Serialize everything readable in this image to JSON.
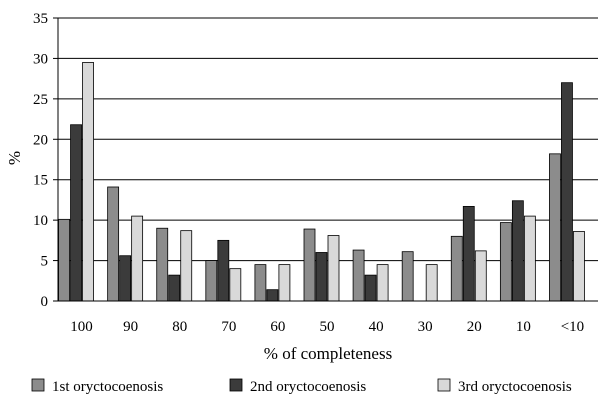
{
  "chart_data": {
    "type": "bar",
    "xlabel": "% of completeness",
    "ylabel": "%",
    "ylim": [
      0,
      35
    ],
    "yticks": [
      0,
      5,
      10,
      15,
      20,
      25,
      30,
      35
    ],
    "grid": true,
    "legend_position": "bottom",
    "categories": [
      "100",
      "90",
      "80",
      "70",
      "60",
      "50",
      "40",
      "30",
      "20",
      "10",
      "<10"
    ],
    "series": [
      {
        "name": "1st oryctocoenosis",
        "color": "#8c8c8c",
        "values": [
          10.1,
          14.1,
          9.0,
          5.0,
          4.5,
          8.9,
          6.3,
          6.1,
          8.0,
          9.7,
          18.2
        ]
      },
      {
        "name": "2nd oryctocoenosis",
        "color": "#3b3b3b",
        "values": [
          21.8,
          5.6,
          3.2,
          7.5,
          1.4,
          6.0,
          3.2,
          0,
          11.7,
          12.4,
          27.0
        ]
      },
      {
        "name": "3rd oryctocoenosis",
        "color": "#d9d9d9",
        "values": [
          29.5,
          10.5,
          8.7,
          4.0,
          4.5,
          8.1,
          4.5,
          4.5,
          6.2,
          10.5,
          8.6
        ]
      }
    ]
  }
}
